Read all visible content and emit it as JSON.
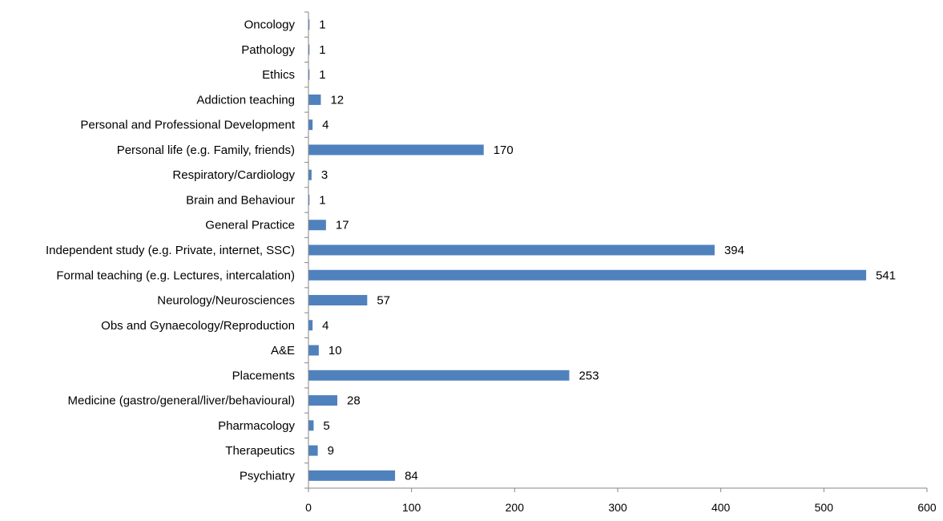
{
  "chart_data": {
    "type": "bar",
    "orientation": "horizontal",
    "categories": [
      "Oncology",
      "Pathology",
      "Ethics",
      "Addiction teaching",
      "Personal and Professional  Development",
      "Personal life (e.g. Family,  friends)",
      "Respiratory/Cardiology",
      "Brain and  Behaviour",
      "General Practice",
      "Independent study (e.g. Private,  internet, SSC)",
      "Formal teaching (e.g. Lectures, intercalation)",
      "Neurology/Neurosciences",
      "Obs and Gynaecology/Reproduction",
      "A&E",
      "Placements",
      "Medicine (gastro/general/liver/behavioural)",
      "Pharmacology",
      "Therapeutics",
      "Psychiatry"
    ],
    "values": [
      1,
      1,
      1,
      12,
      4,
      170,
      3,
      1,
      17,
      394,
      541,
      57,
      4,
      10,
      253,
      28,
      5,
      9,
      84
    ],
    "data_labels": [
      "1",
      "1",
      "1",
      "12",
      "4",
      "170",
      "3",
      "1",
      "17",
      "394",
      "541",
      "57",
      "4",
      "10",
      "253",
      "28",
      "5",
      "9",
      "84"
    ],
    "xlim": [
      0,
      600
    ],
    "x_ticks": [
      "0",
      "100",
      "200",
      "300",
      "400",
      "500",
      "600"
    ],
    "title": "",
    "xlabel": "",
    "ylabel": "",
    "grid": false,
    "legend": "none",
    "bar_color": "#4F81BD"
  }
}
